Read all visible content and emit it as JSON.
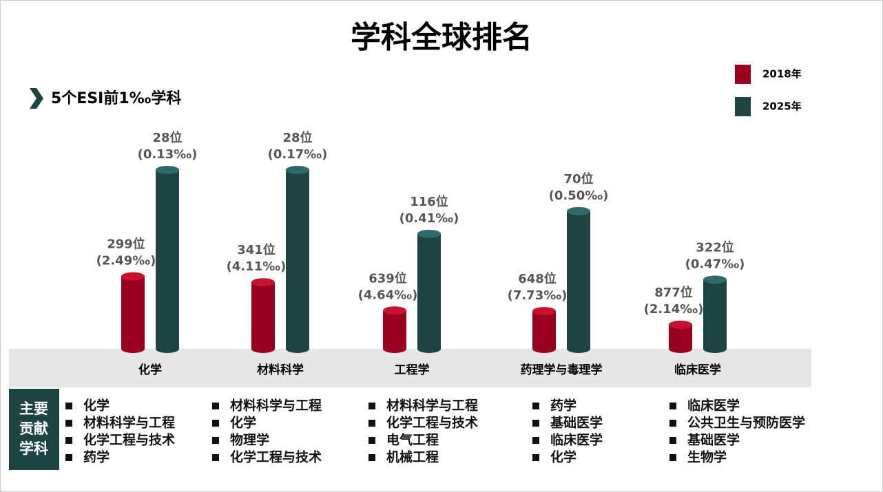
{
  "chart_data": {
    "type": "bar",
    "title": "学科全球排名",
    "subtitle": "5个ESI前1‰学科",
    "categories": [
      "化学",
      "材料科学",
      "工程学",
      "药理学与毒理学",
      "临床医学"
    ],
    "series": [
      {
        "name": "2018年",
        "color": "#9b0020",
        "values": [
          299,
          341,
          639,
          648,
          877
        ],
        "value_labels": [
          "299位",
          "341位",
          "639位",
          "648位",
          "877位"
        ],
        "share_labels": [
          "(2.49‰)",
          "(4.11‰)",
          "(4.64‰)",
          "(7.73‰)",
          "(2.14‰)"
        ]
      },
      {
        "name": "2025年",
        "color": "#1d4343",
        "values": [
          28,
          28,
          116,
          70,
          322
        ],
        "value_labels": [
          "28位",
          "28位",
          "116位",
          "70位",
          "322位"
        ],
        "share_labels": [
          "(0.13‰)",
          "(0.17‰)",
          "(0.41‰)",
          "(0.50‰)",
          "(0.47‰)"
        ]
      }
    ],
    "ylim": [
      1500,
      20
    ],
    "log": true
  },
  "contributors": {
    "heading": [
      "主要",
      "贡献",
      "学科"
    ],
    "columns": [
      [
        "化学",
        "材料科学与工程",
        "化学工程与技术",
        "药学"
      ],
      [
        "材料科学与工程",
        "化学",
        "物理学",
        "化学工程与技术"
      ],
      [
        "材料科学与工程",
        "化学工程与技术",
        "电气工程",
        "机械工程"
      ],
      [
        "药学",
        "基础医学",
        "临床医学",
        "化学"
      ],
      [
        "临床医学",
        "公共卫生与预防医学",
        "基础医学",
        "生物学"
      ]
    ]
  }
}
